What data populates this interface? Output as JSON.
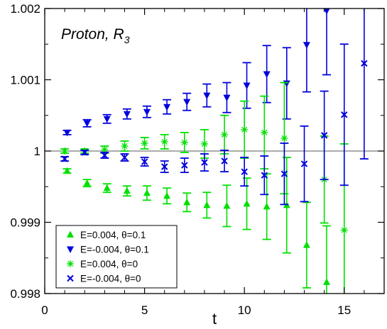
{
  "chart_data": {
    "type": "scatter",
    "title": "",
    "xlabel": "t",
    "ylabel": "",
    "xlim": [
      0,
      17
    ],
    "ylim": [
      0.998,
      1.002
    ],
    "x_ticks": [
      0,
      5,
      10,
      15
    ],
    "y_ticks": [
      0.998,
      0.999,
      1,
      1.001,
      1.002
    ],
    "x_tick_labels": [
      "0",
      "5",
      "10",
      "15"
    ],
    "y_tick_labels": [
      "0.998",
      "0.999",
      "1",
      "1.001",
      "1.002"
    ],
    "reference_line": 1,
    "annotation": {
      "main": "Proton, R",
      "sub": "3"
    },
    "legend_position": "bottom-left",
    "series": [
      {
        "name": "E=0.004, θ=0.1",
        "marker": "triangle-up",
        "color": "#00e000",
        "x": [
          1,
          2,
          3,
          4,
          5,
          6,
          7,
          8,
          9,
          10,
          11,
          12,
          13,
          14
        ],
        "y": [
          0.99972,
          0.99955,
          0.99948,
          0.99944,
          0.99941,
          0.99937,
          0.99928,
          0.99924,
          0.99923,
          0.99926,
          0.99922,
          0.99924,
          0.99868,
          0.99816
        ],
        "err": [
          3e-05,
          5e-05,
          6e-05,
          7e-05,
          0.0001,
          0.00011,
          0.00013,
          0.00018,
          0.00029,
          0.00036,
          0.00046,
          0.00067,
          0.0006,
          0.00079
        ]
      },
      {
        "name": "E=-0.004, θ=0.1",
        "marker": "triangle-down",
        "color": "#0000dc",
        "x": [
          1,
          2,
          3,
          4,
          5,
          6,
          7,
          8,
          9,
          10,
          11,
          12,
          13,
          14
        ],
        "y": [
          1.00026,
          1.00039,
          1.00045,
          1.00052,
          1.00055,
          1.00062,
          1.00069,
          1.00078,
          1.00075,
          1.00092,
          1.00108,
          1.00095,
          1.00149,
          1.00197
        ],
        "err": [
          3e-05,
          5e-05,
          6e-05,
          7e-05,
          8e-05,
          0.0001,
          0.00012,
          0.00016,
          0.00021,
          0.00032,
          0.0004,
          0.0005,
          0.00066,
          0.0009
        ]
      },
      {
        "name": "E=0.004, θ=0",
        "marker": "asterisk",
        "color": "#00e000",
        "x": [
          1,
          2,
          3,
          4,
          5,
          6,
          7,
          8,
          9,
          10,
          11,
          12,
          14,
          15
        ],
        "y": [
          1,
          1,
          1.00002,
          1.00007,
          1.00011,
          1.00013,
          1.00012,
          1.0001,
          1.00023,
          1.0003,
          1.00026,
          1.00018,
          0.9996,
          0.99889
        ],
        "err": [
          3e-05,
          3e-05,
          5e-05,
          7e-05,
          8e-05,
          0.0001,
          0.00014,
          0.0002,
          0.00027,
          0.0004,
          0.00051,
          0.00078,
          0.00061,
          0.00121
        ]
      },
      {
        "name": "E=-0.004, θ=0",
        "marker": "x",
        "color": "#0000dc",
        "x": [
          1,
          2,
          3,
          4,
          5,
          6,
          7,
          8,
          9,
          10,
          11,
          12,
          13,
          14,
          15,
          16
        ],
        "y": [
          0.99989,
          0.99998,
          0.99994,
          0.99991,
          0.99985,
          0.99978,
          0.9998,
          0.99984,
          0.99986,
          0.99971,
          0.99966,
          0.99968,
          0.99982,
          1.00022,
          1.00051,
          1.00123
        ],
        "err": [
          3e-05,
          3e-05,
          4e-05,
          5e-05,
          6e-05,
          8e-05,
          0.0001,
          0.00012,
          0.00015,
          0.0002,
          0.00027,
          0.00043,
          0.00053,
          0.00062,
          0.00099,
          0.00134
        ]
      }
    ]
  }
}
